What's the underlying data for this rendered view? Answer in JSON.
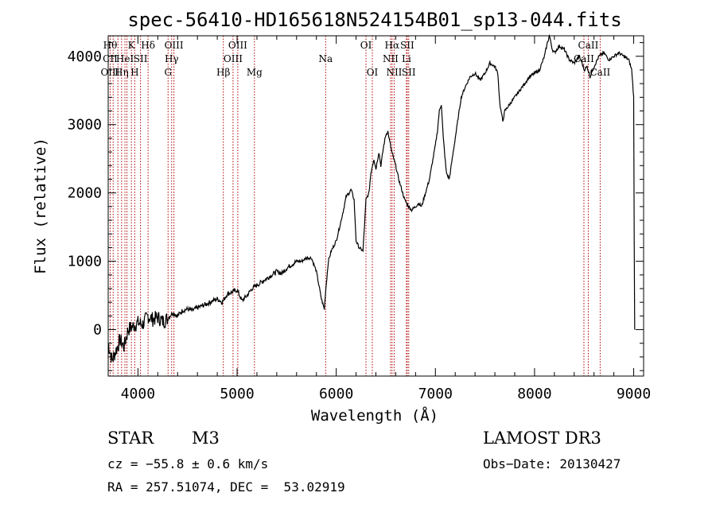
{
  "chart_data": {
    "type": "line",
    "title": "spec-56410-HD165618N524154B01_sp13-044.fits",
    "xlabel": "Wavelength (Å)",
    "ylabel": "Flux (relative)",
    "xlim": [
      3700,
      9100
    ],
    "ylim": [
      -680,
      4300
    ],
    "xticks": [
      4000,
      5000,
      6000,
      7000,
      8000,
      9000
    ],
    "yticks": [
      0,
      1000,
      2000,
      3000,
      4000
    ],
    "grid": false,
    "series": [
      {
        "name": "flux",
        "x": [
          3700,
          3740,
          3780,
          3820,
          3860,
          3900,
          3950,
          4000,
          4050,
          4100,
          4150,
          4200,
          4250,
          4300,
          4350,
          4400,
          4450,
          4500,
          4550,
          4600,
          4650,
          4700,
          4750,
          4800,
          4850,
          4900,
          4950,
          5000,
          5050,
          5100,
          5150,
          5200,
          5250,
          5300,
          5350,
          5400,
          5450,
          5500,
          5550,
          5600,
          5650,
          5700,
          5750,
          5800,
          5850,
          5880,
          5895,
          5905,
          5920,
          5950,
          6000,
          6050,
          6080,
          6100,
          6130,
          6150,
          6180,
          6200,
          6230,
          6270,
          6300,
          6330,
          6350,
          6380,
          6400,
          6430,
          6450,
          6480,
          6500,
          6520,
          6540,
          6560,
          6580,
          6600,
          6630,
          6660,
          6690,
          6710,
          6730,
          6760,
          6800,
          6830,
          6860,
          6900,
          6940,
          6970,
          7000,
          7020,
          7040,
          7060,
          7080,
          7110,
          7140,
          7170,
          7200,
          7230,
          7260,
          7300,
          7350,
          7400,
          7450,
          7500,
          7550,
          7600,
          7630,
          7650,
          7680,
          7700,
          7750,
          7800,
          7850,
          7900,
          7950,
          8000,
          8050,
          8100,
          8130,
          8150,
          8180,
          8200,
          8250,
          8300,
          8350,
          8400,
          8450,
          8480,
          8500,
          8530,
          8560,
          8600,
          8650,
          8700,
          8750,
          8800,
          8850,
          8900,
          8950,
          8980,
          9000,
          9005,
          9010
        ],
        "values": [
          -200,
          -450,
          -300,
          -150,
          -250,
          0,
          50,
          100,
          80,
          200,
          150,
          180,
          120,
          160,
          250,
          200,
          280,
          300,
          280,
          320,
          350,
          380,
          420,
          450,
          400,
          520,
          550,
          580,
          420,
          500,
          600,
          650,
          700,
          750,
          800,
          850,
          820,
          900,
          950,
          1000,
          1000,
          1050,
          1050,
          850,
          450,
          300,
          600,
          750,
          1000,
          1150,
          1300,
          1600,
          1800,
          1950,
          2000,
          2050,
          1900,
          1300,
          1200,
          1150,
          1900,
          2000,
          2300,
          2500,
          2350,
          2600,
          2400,
          2700,
          2850,
          2900,
          2750,
          2600,
          2500,
          2400,
          2200,
          2050,
          1900,
          1850,
          1800,
          1750,
          1800,
          1850,
          1800,
          2000,
          2200,
          2450,
          2700,
          2900,
          3200,
          3300,
          2800,
          2300,
          2200,
          2500,
          2800,
          3100,
          3400,
          3550,
          3700,
          3750,
          3650,
          3750,
          3900,
          3850,
          3750,
          3300,
          3050,
          3200,
          3300,
          3400,
          3500,
          3600,
          3700,
          3750,
          3800,
          4000,
          4200,
          4300,
          4100,
          4050,
          4150,
          4100,
          3950,
          3900,
          4000,
          3900,
          3800,
          3850,
          3700,
          3850,
          4000,
          4050,
          3950,
          4000,
          4050,
          4000,
          3950,
          3800,
          3400,
          1300,
          0
        ]
      }
    ],
    "lines": [
      {
        "wl": 3720,
        "top": "Hθ",
        "mid": "CII",
        "bot": "OIII"
      },
      {
        "wl": 3750,
        "top": "",
        "mid": "",
        "bot": ""
      },
      {
        "wl": 3798,
        "top": "",
        "mid": "",
        "bot": ""
      },
      {
        "wl": 3835,
        "top": "",
        "mid": "",
        "bot": "Hη"
      },
      {
        "wl": 3869,
        "top": "",
        "mid": "HeI",
        "bot": ""
      },
      {
        "wl": 3889,
        "top": "",
        "mid": "",
        "bot": ""
      },
      {
        "wl": 3934,
        "top": "K",
        "mid": "",
        "bot": ""
      },
      {
        "wl": 3968,
        "top": "",
        "mid": "",
        "bot": "H"
      },
      {
        "wl": 4026,
        "top": "",
        "mid": "SII",
        "bot": ""
      },
      {
        "wl": 4102,
        "top": "Hδ",
        "mid": "",
        "bot": ""
      },
      {
        "wl": 4304,
        "top": "",
        "mid": "",
        "bot": "G"
      },
      {
        "wl": 4340,
        "top": "",
        "mid": "Hγ",
        "bot": ""
      },
      {
        "wl": 4363,
        "top": "OIII",
        "mid": "",
        "bot": ""
      },
      {
        "wl": 4861,
        "top": "",
        "mid": "",
        "bot": "Hβ"
      },
      {
        "wl": 4959,
        "top": "",
        "mid": "OIII",
        "bot": ""
      },
      {
        "wl": 5007,
        "top": "OIII",
        "mid": "",
        "bot": ""
      },
      {
        "wl": 5175,
        "top": "",
        "mid": "",
        "bot": "Mg"
      },
      {
        "wl": 5893,
        "top": "",
        "mid": "Na",
        "bot": ""
      },
      {
        "wl": 6300,
        "top": "OI",
        "mid": "",
        "bot": ""
      },
      {
        "wl": 6364,
        "top": "",
        "mid": "",
        "bot": "OI"
      },
      {
        "wl": 6548,
        "top": "",
        "mid": "NII",
        "bot": ""
      },
      {
        "wl": 6563,
        "top": "Hα",
        "mid": "",
        "bot": ""
      },
      {
        "wl": 6584,
        "top": "",
        "mid": "",
        "bot": "NII"
      },
      {
        "wl": 6708,
        "top": "",
        "mid": "Li",
        "bot": ""
      },
      {
        "wl": 6716,
        "top": "SII",
        "mid": "",
        "bot": ""
      },
      {
        "wl": 6731,
        "top": "",
        "mid": "",
        "bot": "SII"
      },
      {
        "wl": 8498,
        "top": "",
        "mid": "CaII",
        "bot": ""
      },
      {
        "wl": 8542,
        "top": "CaII",
        "mid": "",
        "bot": ""
      },
      {
        "wl": 8662,
        "top": "",
        "mid": "",
        "bot": "CaII"
      }
    ]
  },
  "info": {
    "class_label": "STAR",
    "subclass": "M3",
    "survey": "LAMOST DR3",
    "cz": "cz = −55.8 ± 0.6 km/s",
    "obs_date": "Obs−Date: 20130427",
    "coords": "RA = 257.51074, DEC =  53.02919"
  }
}
